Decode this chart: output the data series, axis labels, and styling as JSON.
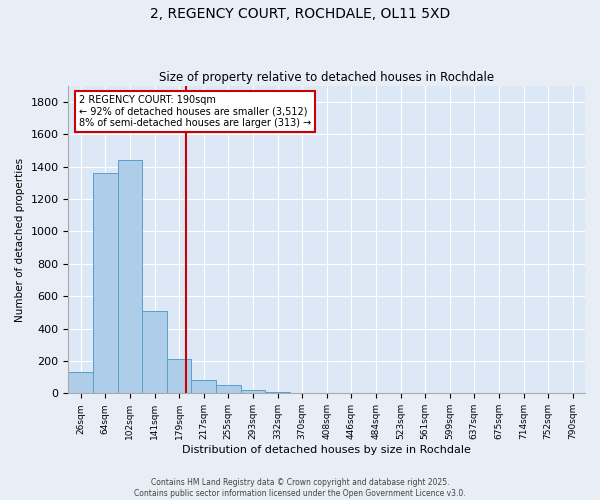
{
  "title": "2, REGENCY COURT, ROCHDALE, OL11 5XD",
  "subtitle": "Size of property relative to detached houses in Rochdale",
  "xlabel": "Distribution of detached houses by size in Rochdale",
  "ylabel": "Number of detached properties",
  "categories": [
    "26sqm",
    "64sqm",
    "102sqm",
    "141sqm",
    "179sqm",
    "217sqm",
    "255sqm",
    "293sqm",
    "332sqm",
    "370sqm",
    "408sqm",
    "446sqm",
    "484sqm",
    "523sqm",
    "561sqm",
    "599sqm",
    "637sqm",
    "675sqm",
    "714sqm",
    "752sqm",
    "790sqm"
  ],
  "values": [
    130,
    1360,
    1440,
    510,
    215,
    80,
    50,
    20,
    10,
    5,
    2,
    1,
    1,
    0,
    0,
    0,
    0,
    0,
    0,
    0,
    0
  ],
  "bar_color": "#aecde8",
  "bar_edge_color": "#5a9ec9",
  "annotation_text": "2 REGENCY COURT: 190sqm\n← 92% of detached houses are smaller (3,512)\n8% of semi-detached houses are larger (313) →",
  "annotation_box_color": "#ffffff",
  "annotation_border_color": "#cc0000",
  "property_line_color": "#cc0000",
  "bg_color": "#dce8f5",
  "fig_bg_color": "#e8eef5",
  "grid_color": "#ffffff",
  "footer_line1": "Contains HM Land Registry data © Crown copyright and database right 2025.",
  "footer_line2": "Contains public sector information licensed under the Open Government Licence v3.0.",
  "ylim": [
    0,
    1900
  ],
  "yticks": [
    0,
    200,
    400,
    600,
    800,
    1000,
    1200,
    1400,
    1600,
    1800
  ]
}
